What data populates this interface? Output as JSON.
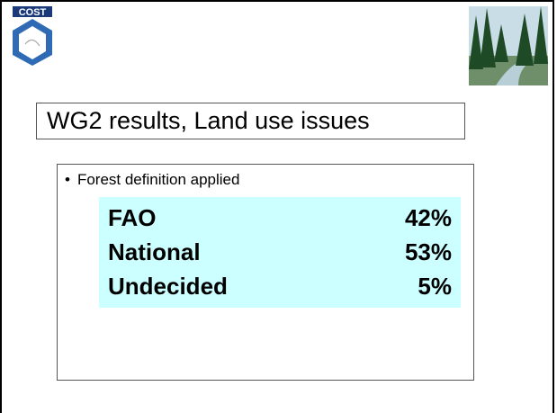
{
  "logo": {
    "text": "COST"
  },
  "title": "WG2 results, Land use issues",
  "content": {
    "bullet": "Forest definition applied",
    "table": {
      "rows": [
        [
          "FAO",
          "42%"
        ],
        [
          "National",
          "53%"
        ],
        [
          "Undecided",
          "5%"
        ]
      ]
    }
  }
}
